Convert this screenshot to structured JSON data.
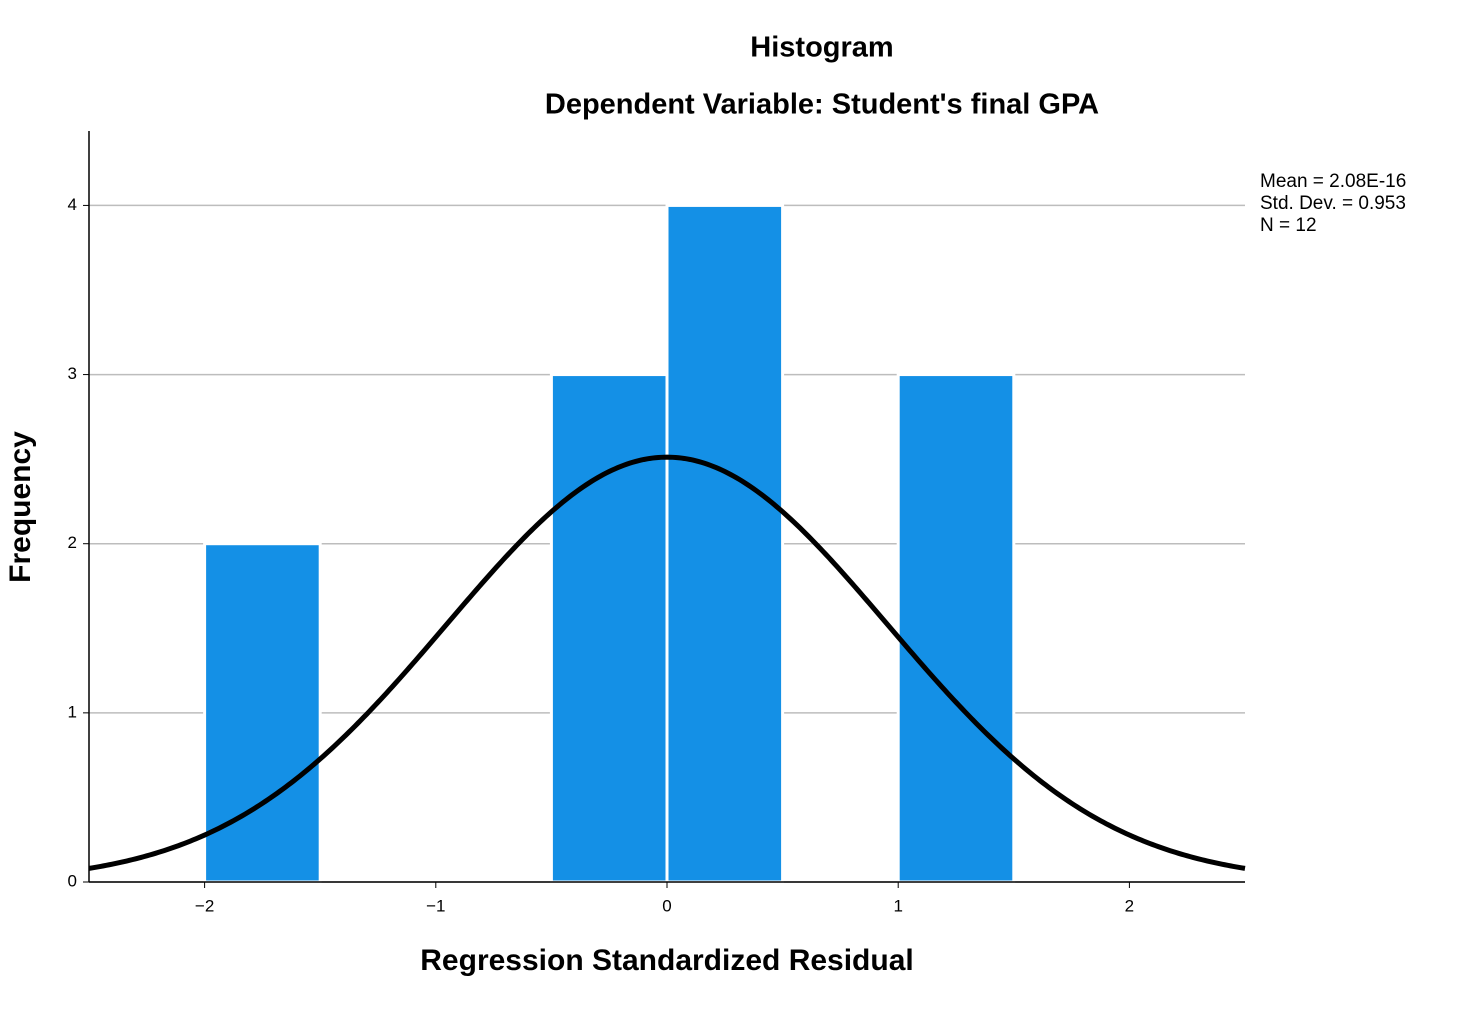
{
  "chart_data": {
    "type": "histogram",
    "title": "Histogram",
    "subtitle": "Dependent Variable: Student's final GPA",
    "x_label": "Regression Standardized Residual",
    "y_label": "Frequency",
    "bins": [
      -2,
      -1.5,
      -1,
      -0.5,
      0,
      0.5,
      1,
      1.5
    ],
    "counts": [
      2,
      0,
      0,
      3,
      4,
      0,
      3
    ],
    "color": "#1490e6",
    "normal_curve": {
      "mean": {
        "value": 2.08e-16,
        "label": "Mean = 2.08E-16"
      },
      "std_dev": {
        "value": 0.953,
        "label": "Std. Dev. = 0.953"
      },
      "n": {
        "value": 12,
        "label": "N = 12"
      },
      "color": "#000000"
    },
    "xlim": [
      -2.5,
      2.5
    ],
    "ylim": [
      0,
      4.44
    ],
    "xticks": [
      {
        "value": -2,
        "label": "−2"
      },
      {
        "value": -1,
        "label": "−1"
      },
      0,
      1,
      2
    ],
    "yticks": [
      0,
      1,
      2,
      3,
      4
    ],
    "grid": true
  }
}
